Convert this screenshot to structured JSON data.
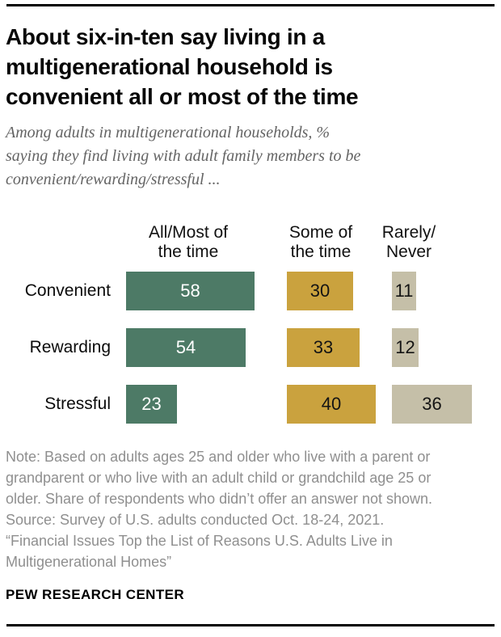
{
  "header": {
    "title": "About six-in-ten say living in a\nmultigenerational household is\nconvenient all or most of the time",
    "subtitle": "Among adults in multigenerational households, %\nsaying they find living with adult family members to be\nconvenient/rewarding/stressful ..."
  },
  "chart_data": {
    "type": "bar",
    "orientation": "horizontal_grouped_columns",
    "unit": "%",
    "categories": [
      "Convenient",
      "Rewarding",
      "Stressful"
    ],
    "series": [
      {
        "name": "All/Most of\nthe time",
        "color": "#4d7a66",
        "value_label_color": "#ffffff",
        "values": [
          58,
          54,
          23
        ]
      },
      {
        "name": "Some of\nthe time",
        "color": "#caa23e",
        "value_label_color": "#141414",
        "values": [
          30,
          33,
          40
        ]
      },
      {
        "name": "Rarely/\nNever",
        "color": "#c5bfa8",
        "value_label_color": "#141414",
        "values": [
          11,
          12,
          36
        ]
      }
    ],
    "value_labels_shown": true,
    "axis_shown": false,
    "grid": false,
    "legend_position": "column-headers-top"
  },
  "footer": {
    "note": "Note: Based on adults ages 25 and older who live with a parent or\ngrandparent or who live with an adult child or grandchild age 25 or\nolder. Share of respondents who didn’t offer an answer not shown.\nSource: Survey of U.S. adults conducted Oct. 18-24, 2021.\n“Financial Issues Top the List of Reasons U.S. Adults Live in\nMultigenerational Homes”",
    "brand": "PEW RESEARCH CENTER"
  }
}
